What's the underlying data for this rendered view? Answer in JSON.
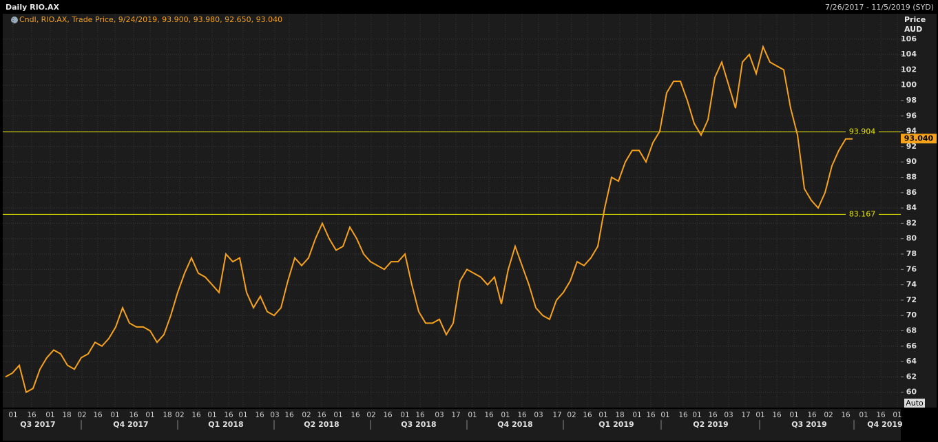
{
  "chart_data": {
    "type": "line",
    "title": "Daily RIO.AX",
    "date_range": "7/26/2017 - 11/5/2019 (SYD)",
    "legend_text": "Cndl, RIO.AX, Trade Price, 9/24/2019, 93.900, 93.980, 92.650, 93.040",
    "y_label": "Price",
    "y_unit": "AUD",
    "auto_label": "Auto",
    "color": "#f7a21b",
    "series": [
      {
        "name": "RIO.AX",
        "color": "#f7a21b",
        "values": [
          62,
          62.5,
          63.5,
          60,
          60.5,
          63,
          64.5,
          65.5,
          65,
          63.5,
          63,
          64.5,
          65,
          66.5,
          66,
          67,
          68.5,
          71,
          69,
          68.5,
          68.5,
          68,
          66.5,
          67.5,
          70,
          73,
          75.5,
          77.5,
          75.5,
          75,
          74,
          73,
          78,
          77,
          77.5,
          73,
          71,
          72.5,
          70.5,
          70,
          71,
          74.5,
          77.5,
          76.5,
          77.5,
          80,
          82,
          80,
          78.5,
          79,
          81.5,
          80,
          78,
          77,
          76.5,
          76,
          77,
          77,
          78,
          74,
          70.5,
          69,
          69,
          69.5,
          67.5,
          69,
          74.5,
          76,
          75.5,
          75,
          74,
          75,
          71.5,
          76,
          79,
          76.5,
          74,
          71,
          70,
          69.5,
          72,
          73,
          74.5,
          77,
          76.5,
          77.5,
          79,
          84,
          88,
          87.5,
          90,
          91.5,
          91.5,
          90,
          92.5,
          94,
          99,
          100.5,
          100.5,
          98,
          95,
          93.5,
          95.5,
          101,
          103,
          100,
          97,
          103,
          104,
          101.5,
          105,
          103,
          102.5,
          102,
          97,
          93.5,
          86.5,
          85,
          84,
          86,
          89.5,
          91.5,
          93,
          93
        ]
      }
    ],
    "hlines": [
      93.904,
      83.167
    ],
    "last_price": {
      "value": 93.04,
      "label": "93.040"
    },
    "ylim": [
      58,
      109.3
    ],
    "yticks": [
      60,
      62,
      64,
      66,
      68,
      70,
      72,
      74,
      76,
      78,
      80,
      82,
      84,
      86,
      88,
      90,
      92,
      94,
      96,
      98,
      100,
      102,
      104,
      106
    ],
    "xtick_labels": [
      "01",
      "16",
      "01",
      "18",
      "02",
      "16",
      "01",
      "16",
      "01",
      "18",
      "02",
      "16",
      "01",
      "16",
      "01",
      "16",
      "03",
      "16",
      "02",
      "16",
      "01",
      "16",
      "02",
      "16",
      "01",
      "16",
      "03",
      "17",
      "01",
      "16",
      "01",
      "16",
      "03",
      "17",
      "02",
      "16",
      "01",
      "18",
      "01",
      "16",
      "01",
      "16",
      "01",
      "16",
      "03",
      "17",
      "01",
      "16",
      "01",
      "16",
      "02",
      "16",
      "01",
      "16",
      "01"
    ],
    "quarters": [
      "Q3 2017",
      "Q4 2017",
      "Q1 2018",
      "Q2 2018",
      "Q3 2018",
      "Q4 2018",
      "Q1 2019",
      "Q2 2019",
      "Q3 2019",
      "Q4 2019"
    ],
    "grid": true
  }
}
